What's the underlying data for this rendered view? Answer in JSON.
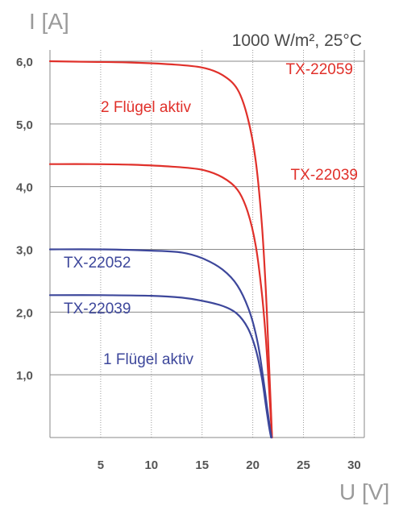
{
  "chart_data": {
    "type": "line",
    "title": "1000 W/m², 25°C",
    "xlabel": "U [V]",
    "ylabel": "I [A]",
    "xlim": [
      0,
      31
    ],
    "ylim": [
      0,
      6.18
    ],
    "x_ticks": [
      "5",
      "10",
      "15",
      "20",
      "25",
      "30"
    ],
    "x_tick_values": [
      5,
      10,
      15,
      20,
      25,
      30
    ],
    "y_ticks": [
      "1,0",
      "2,0",
      "3,0",
      "4,0",
      "5,0",
      "6,0"
    ],
    "y_tick_values": [
      1,
      2,
      3,
      4,
      5,
      6
    ],
    "grid": true,
    "series": [
      {
        "name": "TX-22059",
        "color": "#e0302a",
        "points": [
          [
            0,
            6.0
          ],
          [
            4,
            5.99
          ],
          [
            8,
            5.98
          ],
          [
            12,
            5.95
          ],
          [
            15,
            5.9
          ],
          [
            17,
            5.78
          ],
          [
            18.5,
            5.55
          ],
          [
            19.5,
            5.1
          ],
          [
            20.3,
            4.4
          ],
          [
            20.9,
            3.4
          ],
          [
            21.3,
            2.3
          ],
          [
            21.6,
            1.2
          ],
          [
            21.8,
            0.4
          ],
          [
            21.9,
            0.0
          ]
        ]
      },
      {
        "name": "TX-22039",
        "color": "#e0302a",
        "points": [
          [
            0,
            4.36
          ],
          [
            4,
            4.36
          ],
          [
            8,
            4.35
          ],
          [
            12,
            4.32
          ],
          [
            15,
            4.27
          ],
          [
            17,
            4.15
          ],
          [
            18.5,
            3.95
          ],
          [
            19.5,
            3.6
          ],
          [
            20.3,
            3.05
          ],
          [
            20.9,
            2.3
          ],
          [
            21.3,
            1.55
          ],
          [
            21.6,
            0.8
          ],
          [
            21.8,
            0.25
          ],
          [
            21.9,
            0.0
          ]
        ]
      },
      {
        "name": "TX-22052",
        "color": "#3d479b",
        "points": [
          [
            0,
            3.0
          ],
          [
            5,
            3.0
          ],
          [
            10,
            2.98
          ],
          [
            13,
            2.95
          ],
          [
            15,
            2.86
          ],
          [
            17,
            2.68
          ],
          [
            18.5,
            2.42
          ],
          [
            19.7,
            2.0
          ],
          [
            20.5,
            1.5
          ],
          [
            21.0,
            0.98
          ],
          [
            21.4,
            0.5
          ],
          [
            21.7,
            0.15
          ],
          [
            21.85,
            0.0
          ]
        ]
      },
      {
        "name": "TX-22039",
        "color": "#3d479b",
        "points": [
          [
            0,
            2.27
          ],
          [
            5,
            2.27
          ],
          [
            10,
            2.26
          ],
          [
            13,
            2.23
          ],
          [
            15,
            2.18
          ],
          [
            17,
            2.1
          ],
          [
            18.4,
            1.98
          ],
          [
            19.5,
            1.75
          ],
          [
            20.3,
            1.4
          ],
          [
            20.9,
            0.95
          ],
          [
            21.3,
            0.5
          ],
          [
            21.6,
            0.18
          ],
          [
            21.8,
            0.0
          ]
        ]
      }
    ],
    "annotations": [
      {
        "text": "2 Flügel aktiv",
        "color": "#e0302a"
      },
      {
        "text": "1 Flügel aktiv",
        "color": "#3d479b"
      }
    ]
  }
}
